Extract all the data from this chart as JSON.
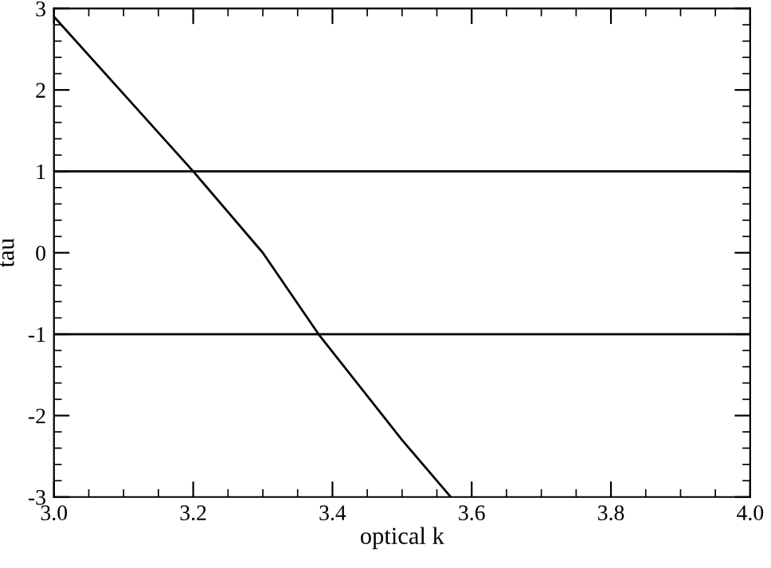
{
  "chart_data": {
    "type": "line",
    "xlabel": "optical k",
    "ylabel": "tau",
    "x": [
      3.0,
      3.1,
      3.2,
      3.3,
      3.38,
      3.5,
      3.57
    ],
    "series": [
      {
        "color": "#000000",
        "values": [
          2.9,
          1.95,
          1.0,
          0.0,
          -1.0,
          -2.3,
          -3.0
        ]
      }
    ],
    "xlim": [
      3.0,
      4.0
    ],
    "ylim": [
      -3,
      3
    ],
    "xticks": [
      {
        "value": 3.0,
        "label": "3.0"
      },
      3.2,
      3.4,
      3.6,
      3.8,
      {
        "value": 4.0,
        "label": "4.0"
      }
    ],
    "yticks": [
      -3,
      -2,
      -1,
      0,
      1,
      2,
      3
    ],
    "ref_lines": [
      {
        "axis": "y",
        "value": 1,
        "color": "#000000"
      },
      {
        "axis": "y",
        "value": -1,
        "color": "#000000"
      }
    ],
    "grid": false,
    "legend": false,
    "marker": "none",
    "line_style": "solid"
  }
}
